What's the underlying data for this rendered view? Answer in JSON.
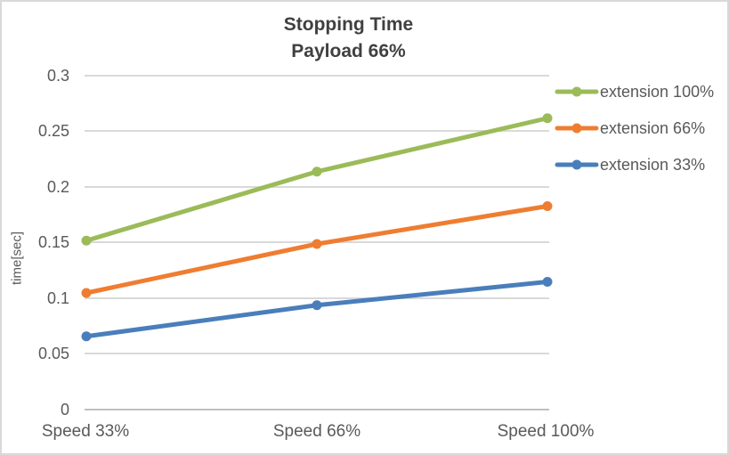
{
  "chart_data": {
    "type": "line",
    "title": "Stopping Time",
    "subtitle": "Payload 66%",
    "xlabel": "",
    "ylabel": "time[sec]",
    "categories": [
      "Speed 33%",
      "Speed 66%",
      "Speed 100%"
    ],
    "ylim": [
      0,
      0.3
    ],
    "ytick_step": 0.05,
    "ytick_labels": [
      "0.3",
      "0.25",
      "0.2",
      "0.15",
      "0.1",
      "0.05",
      "0"
    ],
    "grid": true,
    "legend_position": "right",
    "series": [
      {
        "name": "extension 100%",
        "color": "#9bbb59",
        "values": [
          0.151,
          0.213,
          0.261
        ]
      },
      {
        "name": "extension 66%",
        "color": "#ef7d31",
        "values": [
          0.104,
          0.148,
          0.182
        ]
      },
      {
        "name": "extension 33%",
        "color": "#4a7ebb",
        "values": [
          0.065,
          0.093,
          0.114
        ]
      }
    ]
  },
  "colors": {
    "gridline": "#d9d9d9",
    "axis_line": "#bfbfbf",
    "border": "#d9d9d9",
    "title_text": "#404040",
    "axis_text": "#595959"
  }
}
